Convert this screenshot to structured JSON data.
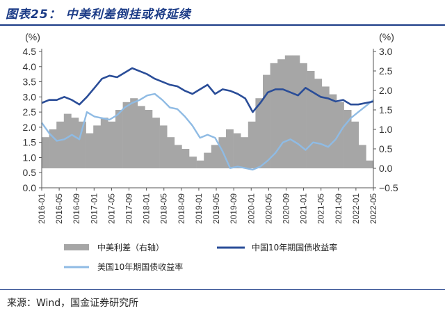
{
  "header": {
    "title": "图表25：  中美利差倒挂或将延续"
  },
  "footer": {
    "source": "来源：Wind，国金证券研究所"
  },
  "colors": {
    "spread": "#a6a6a6",
    "china": "#2a4d98",
    "us": "#8fbbe4",
    "title": "#1a3a86"
  },
  "chart_data": {
    "type": "line",
    "title": "",
    "yleft": {
      "unit": "(%)",
      "range": [
        0,
        4.5
      ],
      "ticks": [
        "4.5",
        "4.0",
        "3.5",
        "3.0",
        "2.5",
        "2.0",
        "1.5",
        "1.0",
        "0.5",
        "0.0"
      ]
    },
    "yright": {
      "unit": "(%)",
      "range": [
        -0.5,
        3.0
      ],
      "ticks": [
        "3.0",
        "2.5",
        "2.0",
        "1.5",
        "1.0",
        "0.5",
        "0.0",
        "−0.5"
      ]
    },
    "x_ticks": [
      "2016-01",
      "2016-05",
      "2016-09",
      "2017-01",
      "2017-05",
      "2017-09",
      "2018-01",
      "2018-05",
      "2018-09",
      "2019-01",
      "2019-05",
      "2019-09",
      "2020-01",
      "2020-05",
      "2020-09",
      "2021-01",
      "2021-05",
      "2021-09",
      "2022-01",
      "2022-05"
    ],
    "legend": {
      "placement": "bottom"
    },
    "series": [
      {
        "name": "中美利差（右轴）",
        "type": "bar",
        "axis": "right",
        "values": [
          0.8,
          1.0,
          1.2,
          1.4,
          1.3,
          1.2,
          0.9,
          1.1,
          1.3,
          1.2,
          1.5,
          1.7,
          1.8,
          1.6,
          1.5,
          1.3,
          1.1,
          0.8,
          0.6,
          0.5,
          0.3,
          0.2,
          0.4,
          0.6,
          0.8,
          1.0,
          0.9,
          0.8,
          1.2,
          1.8,
          2.4,
          2.7,
          2.8,
          2.9,
          2.9,
          2.7,
          2.5,
          2.3,
          2.1,
          1.9,
          1.7,
          1.5,
          1.2,
          0.6,
          0.2
        ]
      },
      {
        "name": "中国10年期国债收益率",
        "type": "line",
        "axis": "left",
        "values": [
          2.8,
          2.9,
          2.9,
          3.0,
          2.9,
          2.75,
          3.0,
          3.3,
          3.6,
          3.7,
          3.65,
          3.8,
          3.95,
          3.85,
          3.75,
          3.6,
          3.5,
          3.4,
          3.35,
          3.2,
          3.1,
          3.25,
          3.4,
          3.1,
          3.25,
          3.2,
          3.1,
          2.95,
          2.5,
          2.8,
          3.15,
          3.25,
          3.25,
          3.15,
          3.05,
          3.3,
          3.15,
          3.0,
          2.95,
          2.85,
          2.9,
          2.75,
          2.75,
          2.8,
          2.85
        ]
      },
      {
        "name": "美国10年期国债收益率",
        "type": "line",
        "axis": "left",
        "values": [
          2.15,
          1.8,
          1.55,
          1.6,
          1.75,
          1.6,
          2.5,
          2.35,
          2.3,
          2.25,
          2.4,
          2.65,
          2.8,
          2.9,
          3.05,
          3.1,
          2.9,
          2.65,
          2.6,
          2.35,
          2.05,
          1.65,
          1.75,
          1.65,
          1.2,
          0.65,
          0.7,
          0.65,
          0.6,
          0.7,
          0.9,
          1.15,
          1.5,
          1.6,
          1.45,
          1.25,
          1.5,
          1.45,
          1.35,
          1.6,
          2.0,
          2.3,
          2.5,
          2.7,
          2.9
        ]
      }
    ]
  }
}
